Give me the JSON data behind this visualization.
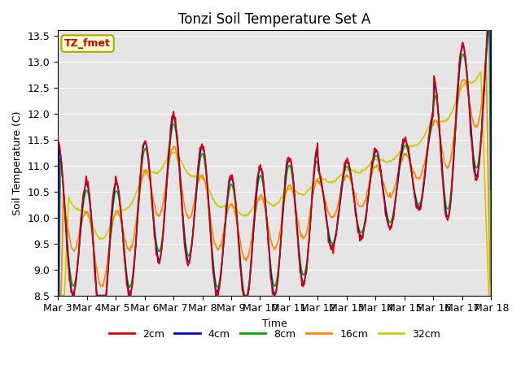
{
  "title": "Tonzi Soil Temperature Set A",
  "xlabel": "Time",
  "ylabel": "Soil Temperature (C)",
  "ylim": [
    8.5,
    13.6
  ],
  "xlim": [
    0,
    15
  ],
  "annotation": "TZ_fmet",
  "annotation_color": "#cc0000",
  "annotation_bg": "#ffffcc",
  "annotation_border": "#aaaa00",
  "bg_color": "#e5e5e5",
  "line_colors": {
    "2cm": "#dd0000",
    "4cm": "#0000cc",
    "8cm": "#00aa00",
    "16cm": "#ff8800",
    "32cm": "#cccc00"
  },
  "legend_labels": [
    "2cm",
    "4cm",
    "8cm",
    "16cm",
    "32cm"
  ],
  "x_tick_labels": [
    "Mar 3",
    "Mar 4",
    "Mar 5",
    "Mar 6",
    "Mar 7",
    "Mar 8",
    "Mar 9",
    "Mar 10",
    "Mar 11",
    "Mar 12",
    "Mar 13",
    "Mar 14",
    "Mar 15",
    "Mar 16",
    "Mar 17",
    "Mar 18"
  ],
  "n_days": 15,
  "points_per_day": 48
}
